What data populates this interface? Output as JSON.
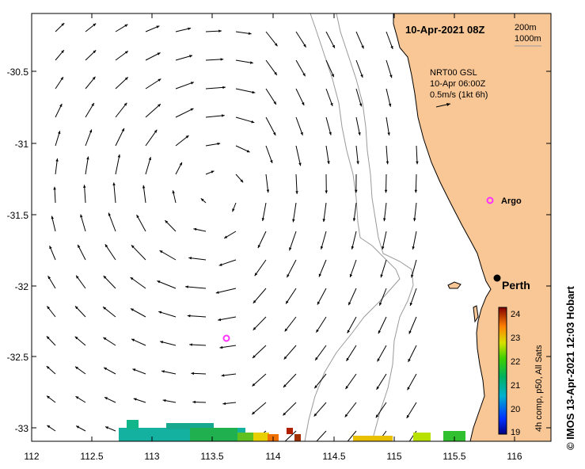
{
  "map": {
    "title": "10-Apr-2021 08Z",
    "isobaths": [
      "200m",
      "1000m"
    ],
    "product": {
      "line1": "NRT00 GSL",
      "line2": "10-Apr 06:00Z",
      "line3": "0.5m/s (1kt 6h)"
    },
    "lon_ticks": [
      "112",
      "112.5",
      "113",
      "113.5",
      "114",
      "114.5",
      "115",
      "115.5",
      "116"
    ],
    "lat_ticks": [
      "-30.5",
      "-31",
      "-31.5",
      "-32",
      "-32.5",
      "-33"
    ],
    "places": {
      "argo": "Argo",
      "perth": "Perth"
    },
    "colorbar": {
      "ticks": [
        "24",
        "23",
        "22",
        "21",
        "20",
        "19"
      ],
      "label": "4h comp, p50, All Sats"
    },
    "credit": "© IMOS 13-Apr-2021 12:03 Hobart"
  },
  "colors": {
    "land": "#f9c796",
    "isobath": "#9a9a9a",
    "argo": "#ff33ff",
    "arrow": "#000000"
  }
}
